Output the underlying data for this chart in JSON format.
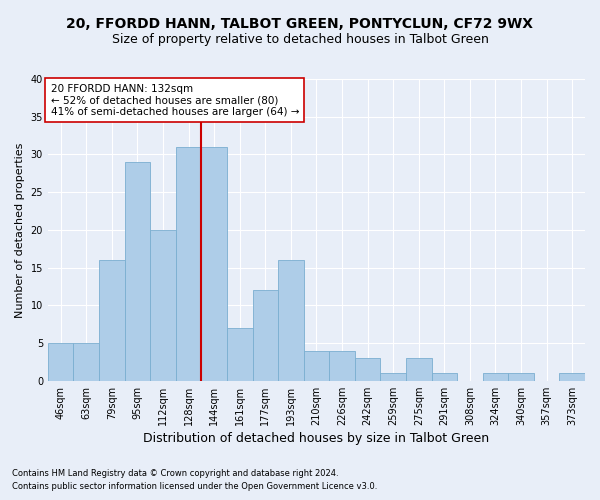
{
  "title1": "20, FFORDD HANN, TALBOT GREEN, PONTYCLUN, CF72 9WX",
  "title2": "Size of property relative to detached houses in Talbot Green",
  "xlabel": "Distribution of detached houses by size in Talbot Green",
  "ylabel": "Number of detached properties",
  "footer1": "Contains HM Land Registry data © Crown copyright and database right 2024.",
  "footer2": "Contains public sector information licensed under the Open Government Licence v3.0.",
  "annotation_line1": "20 FFORDD HANN: 132sqm",
  "annotation_line2": "← 52% of detached houses are smaller (80)",
  "annotation_line3": "41% of semi-detached houses are larger (64) →",
  "bar_color": "#aecde8",
  "bar_edge_color": "#7aaed0",
  "vline_color": "#cc0000",
  "vline_x": 5.5,
  "categories": [
    "46sqm",
    "63sqm",
    "79sqm",
    "95sqm",
    "112sqm",
    "128sqm",
    "144sqm",
    "161sqm",
    "177sqm",
    "193sqm",
    "210sqm",
    "226sqm",
    "242sqm",
    "259sqm",
    "275sqm",
    "291sqm",
    "308sqm",
    "324sqm",
    "340sqm",
    "357sqm",
    "373sqm"
  ],
  "values": [
    5,
    5,
    16,
    29,
    20,
    31,
    31,
    7,
    12,
    16,
    4,
    4,
    3,
    1,
    3,
    1,
    0,
    1,
    1,
    0,
    1
  ],
  "ylim": [
    0,
    40
  ],
  "yticks": [
    0,
    5,
    10,
    15,
    20,
    25,
    30,
    35,
    40
  ],
  "background_color": "#e8eef8",
  "plot_bg_color": "#e8eef8",
  "grid_color": "#ffffff",
  "annotation_box_color": "#ffffff",
  "annotation_box_edge": "#cc0000",
  "title_fontsize": 10,
  "subtitle_fontsize": 9,
  "tick_fontsize": 7,
  "ylabel_fontsize": 8,
  "xlabel_fontsize": 9,
  "footer_fontsize": 6,
  "annotation_fontsize": 7.5
}
